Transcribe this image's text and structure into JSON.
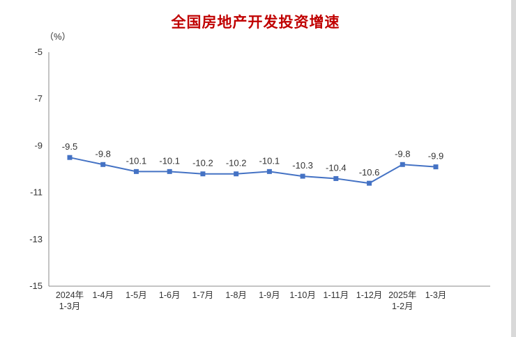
{
  "title": "全国房地产开发投资增速",
  "unit_label": "（%）",
  "chart_data": {
    "type": "line",
    "title": "全国房地产开发投资增速",
    "ylabel": "(%)",
    "categories": [
      "2024年\n1-3月",
      "1-4月",
      "1-5月",
      "1-6月",
      "1-7月",
      "1-8月",
      "1-9月",
      "1-10月",
      "1-11月",
      "1-12月",
      "2025年\n1-2月",
      "1-3月"
    ],
    "values": [
      -9.5,
      -9.8,
      -10.1,
      -10.1,
      -10.2,
      -10.2,
      -10.1,
      -10.3,
      -10.4,
      -10.6,
      -9.8,
      -9.9
    ],
    "ylim": [
      -15,
      -5
    ],
    "yticks": [
      -5,
      -7,
      -9,
      -11,
      -13,
      -15
    ],
    "grid": false,
    "legend": "none",
    "line_color": "#4472c4",
    "title_color": "#c00000",
    "text_color": "#333333",
    "axis_color": "#898989"
  }
}
